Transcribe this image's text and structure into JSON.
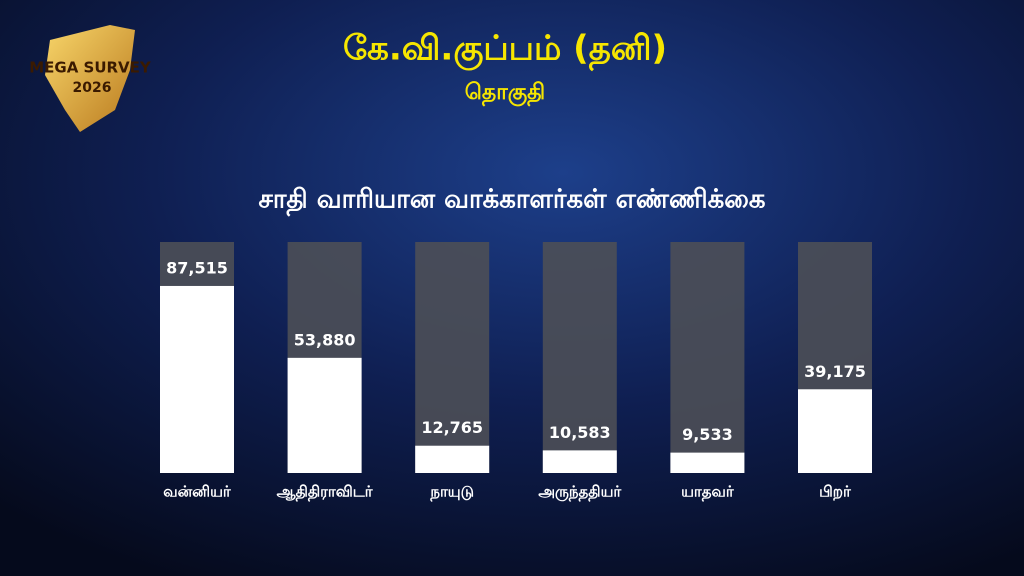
{
  "logo": {
    "line1": "MEGA SURVEY",
    "line2": "2026"
  },
  "chart_data": {
    "type": "bar",
    "title": "கே.வி.குப்பம் (தனி)",
    "subtitle": "தொகுதி",
    "chart_title": "சாதி வாரியான வாக்காளர்கள் எண்ணிக்கை",
    "categories": [
      "வன்னியர்",
      "ஆதிதிராவிடர்",
      "நாயுடு",
      "அருந்ததியர்",
      "யாதவர்",
      "பிறர்"
    ],
    "values": [
      87515,
      53880,
      12765,
      10583,
      9533,
      39175
    ],
    "value_labels": [
      "87,515",
      "53,880",
      "12,765",
      "10,583",
      "9,533",
      "39,175"
    ],
    "color": "#ffffff"
  }
}
